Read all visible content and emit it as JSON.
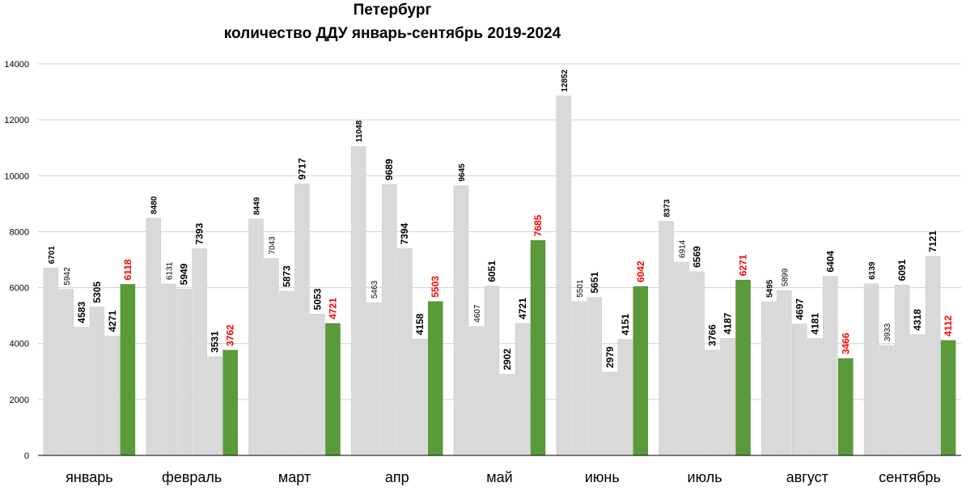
{
  "chart_data": {
    "type": "bar",
    "title": "Петербург",
    "subtitle": "количество ДДУ январь-сентябрь 2019-2024",
    "xlabel": "",
    "ylabel": "",
    "ylim": [
      0,
      14000
    ],
    "yticks": [
      0,
      2000,
      4000,
      6000,
      8000,
      10000,
      12000,
      14000
    ],
    "grid": true,
    "legend": "none",
    "categories": [
      "январь",
      "февраль",
      "март",
      "апр",
      "май",
      "июнь",
      "июль",
      "август",
      "сентябрь"
    ],
    "series": [
      {
        "values": [
          6701,
          8480,
          8449,
          11048,
          9645,
          12852,
          8373,
          5495,
          6139
        ]
      },
      {
        "values": [
          5942,
          6131,
          7043,
          5463,
          4607,
          5501,
          6914,
          5899,
          3933
        ]
      },
      {
        "values": [
          4583,
          5949,
          5873,
          9689,
          6051,
          5651,
          6569,
          4697,
          6091
        ]
      },
      {
        "values": [
          5305,
          7393,
          9717,
          7394,
          2902,
          2979,
          3766,
          4181,
          4318
        ]
      },
      {
        "values": [
          4271,
          3531,
          5053,
          4158,
          4721,
          4151,
          4187,
          6404,
          7121
        ]
      },
      {
        "values": [
          6118,
          3762,
          4721,
          5503,
          7685,
          6042,
          6271,
          3466,
          4112
        ]
      }
    ],
    "colors": {
      "bar": "#d9d9d9",
      "highlight_bar": "#5a9a3a",
      "highlight_label": "#ff0000",
      "label": "#000000",
      "grid": "#d0d0d0",
      "axis": "#000000"
    }
  }
}
